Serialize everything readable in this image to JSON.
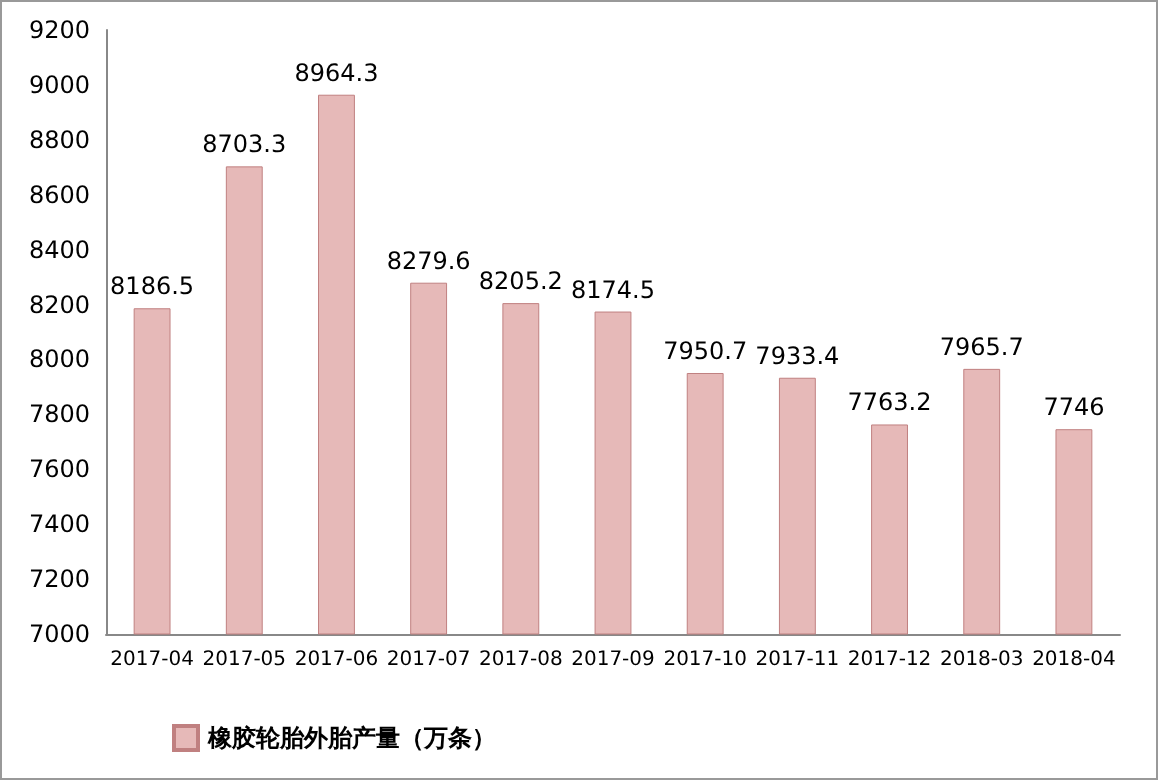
{
  "chart_data": {
    "type": "bar",
    "categories": [
      "2017-04",
      "2017-05",
      "2017-06",
      "2017-07",
      "2017-08",
      "2017-09",
      "2017-10",
      "2017-11",
      "2017-12",
      "2018-03",
      "2018-04"
    ],
    "series": [
      {
        "name": "橡胶轮胎外胎产量（万条）",
        "color": "#e6b9b8",
        "values": [
          8186.5,
          8703.3,
          8964.3,
          8279.6,
          8205.2,
          8174.5,
          7950.7,
          7933.4,
          7763.2,
          7965.7,
          7746
        ]
      }
    ],
    "ylim": [
      7000,
      9200
    ],
    "yticks": [
      7000,
      7200,
      7400,
      7600,
      7800,
      8000,
      8200,
      8400,
      8600,
      8800,
      9000,
      9200
    ],
    "data_labels": true,
    "legend": "bottom left",
    "grid": false
  }
}
